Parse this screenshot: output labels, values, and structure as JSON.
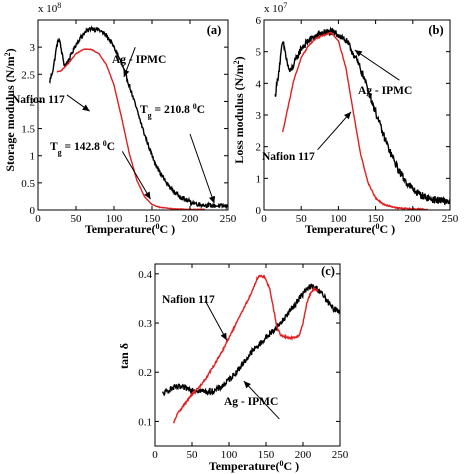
{
  "chart_data": [
    {
      "panel": "(a)",
      "type": "line",
      "xlabel": "Temperature(",
      "xlabel_sup": "0",
      "xlabel_end": "C )",
      "ylabel": "Storage modulus (N/m",
      "ylabel_sup": "2",
      "ylabel_end": ")",
      "multiplier": "x 10",
      "multiplier_exp": "8",
      "xlim": [
        0,
        250
      ],
      "ylim": [
        0,
        3.5
      ],
      "xticks": [
        0,
        50,
        100,
        150,
        200,
        250
      ],
      "yticks": [
        0,
        0.5,
        1,
        1.5,
        2,
        2.5,
        3
      ],
      "xtick_labels": [
        "0",
        "50",
        "100",
        "150",
        "200",
        "250"
      ],
      "ytick_labels": [
        "0",
        "0.5",
        "1",
        "1.5",
        "2",
        "2.5",
        "3"
      ],
      "series": [
        {
          "name": "Ag - IPMC",
          "color": "#000000",
          "noise": 0.04,
          "points": [
            [
              15,
              2.35
            ],
            [
              20,
              2.6
            ],
            [
              25,
              3.05
            ],
            [
              28,
              3.15
            ],
            [
              32,
              2.85
            ],
            [
              35,
              2.65
            ],
            [
              40,
              2.75
            ],
            [
              50,
              3.05
            ],
            [
              60,
              3.25
            ],
            [
              70,
              3.35
            ],
            [
              80,
              3.32
            ],
            [
              90,
              3.22
            ],
            [
              100,
              3.0
            ],
            [
              110,
              2.7
            ],
            [
              120,
              2.3
            ],
            [
              130,
              1.85
            ],
            [
              140,
              1.4
            ],
            [
              150,
              1.0
            ],
            [
              160,
              0.7
            ],
            [
              170,
              0.48
            ],
            [
              180,
              0.32
            ],
            [
              190,
              0.22
            ],
            [
              200,
              0.15
            ],
            [
              210,
              0.11
            ],
            [
              220,
              0.09
            ],
            [
              230,
              0.08
            ],
            [
              240,
              0.075
            ],
            [
              250,
              0.07
            ]
          ]
        },
        {
          "name": "Nafion 117",
          "color": "#e02020",
          "noise": 0.005,
          "points": [
            [
              25,
              2.55
            ],
            [
              30,
              2.56
            ],
            [
              40,
              2.7
            ],
            [
              50,
              2.88
            ],
            [
              60,
              2.96
            ],
            [
              70,
              2.96
            ],
            [
              80,
              2.88
            ],
            [
              90,
              2.68
            ],
            [
              100,
              2.3
            ],
            [
              110,
              1.7
            ],
            [
              120,
              1.05
            ],
            [
              130,
              0.55
            ],
            [
              140,
              0.25
            ],
            [
              150,
              0.1
            ],
            [
              160,
              0.05
            ],
            [
              180,
              0.02
            ],
            [
              200,
              0.01
            ],
            [
              220,
              0.01
            ]
          ]
        }
      ],
      "annotations": [
        {
          "text": "Ag - IPMC",
          "from": [
            128,
            3.0
          ],
          "to": [
            113,
            2.45
          ]
        },
        {
          "text": "Nafion 117",
          "from": [
            38,
            2.12
          ],
          "to": [
            68,
            1.82
          ]
        },
        {
          "text": "T",
          "sub": "g",
          "value": " = 210.8 ",
          "sup": "0",
          "end": "C",
          "from": [
            200,
            1.4
          ],
          "to": [
            232,
            0.12
          ]
        },
        {
          "text": "T",
          "sub": "g",
          "value": " = 142.8 ",
          "sup": "0",
          "end": "C",
          "from": [
            111,
            1.08
          ],
          "to": [
            148,
            0.2
          ]
        }
      ]
    },
    {
      "panel": "(b)",
      "type": "line",
      "xlabel": "Temperature(",
      "xlabel_sup": "0",
      "xlabel_end": "C )",
      "ylabel": "Loss modulus (N/m",
      "ylabel_sup": "2",
      "ylabel_end": ")",
      "multiplier": "x 10",
      "multiplier_exp": "7",
      "xlim": [
        0,
        250
      ],
      "ylim": [
        0,
        6
      ],
      "xticks": [
        0,
        50,
        100,
        150,
        200,
        250
      ],
      "yticks": [
        0,
        1,
        2,
        3,
        4,
        5,
        6
      ],
      "xtick_labels": [
        "0",
        "50",
        "100",
        "150",
        "200",
        "250"
      ],
      "ytick_labels": [
        "0",
        "1",
        "2",
        "3",
        "4",
        "5",
        "6"
      ],
      "series": [
        {
          "name": "Ag - IPMC",
          "color": "#000000",
          "noise": 0.12,
          "points": [
            [
              15,
              3.6
            ],
            [
              20,
              4.4
            ],
            [
              25,
              5.3
            ],
            [
              28,
              5.05
            ],
            [
              32,
              4.55
            ],
            [
              35,
              4.35
            ],
            [
              40,
              4.6
            ],
            [
              50,
              5.1
            ],
            [
              60,
              5.35
            ],
            [
              70,
              5.5
            ],
            [
              80,
              5.6
            ],
            [
              90,
              5.62
            ],
            [
              100,
              5.55
            ],
            [
              110,
              5.35
            ],
            [
              120,
              4.95
            ],
            [
              130,
              4.45
            ],
            [
              140,
              3.8
            ],
            [
              150,
              3.1
            ],
            [
              160,
              2.4
            ],
            [
              170,
              1.8
            ],
            [
              180,
              1.3
            ],
            [
              190,
              0.92
            ],
            [
              200,
              0.65
            ],
            [
              210,
              0.48
            ],
            [
              220,
              0.38
            ],
            [
              230,
              0.32
            ],
            [
              240,
              0.28
            ],
            [
              250,
              0.27
            ]
          ]
        },
        {
          "name": "Nafion 117",
          "color": "#e02020",
          "noise": 0.02,
          "points": [
            [
              25,
              2.45
            ],
            [
              30,
              3.0
            ],
            [
              40,
              4.1
            ],
            [
              50,
              4.8
            ],
            [
              60,
              5.2
            ],
            [
              70,
              5.42
            ],
            [
              80,
              5.52
            ],
            [
              90,
              5.6
            ],
            [
              100,
              5.35
            ],
            [
              110,
              4.5
            ],
            [
              120,
              3.1
            ],
            [
              130,
              1.75
            ],
            [
              140,
              0.85
            ],
            [
              150,
              0.38
            ],
            [
              160,
              0.18
            ],
            [
              180,
              0.06
            ],
            [
              200,
              0.03
            ],
            [
              220,
              0.02
            ]
          ]
        }
      ],
      "annotations": [
        {
          "text": "Ag - IPMC",
          "from": [
            182,
            4.1
          ],
          "to": [
            122,
            5.05
          ]
        },
        {
          "text": "Nafion 117",
          "from": [
            72,
            1.9
          ],
          "to": [
            117,
            3.1
          ]
        }
      ]
    },
    {
      "panel": "(c)",
      "type": "line",
      "xlabel": "Temperature(",
      "xlabel_sup": "0",
      "xlabel_end": "C )",
      "ylabel": "tan δ",
      "xlim": [
        0,
        250
      ],
      "ylim": [
        0.05,
        0.42
      ],
      "xticks": [
        0,
        50,
        100,
        150,
        200,
        250
      ],
      "yticks": [
        0.1,
        0.2,
        0.3,
        0.4
      ],
      "xtick_labels": [
        "0",
        "50",
        "100",
        "150",
        "200",
        "250"
      ],
      "ytick_labels": [
        "0.1",
        "0.2",
        "0.3",
        "0.4"
      ],
      "series": [
        {
          "name": "Ag - IPMC",
          "color": "#000000",
          "noise": 0.006,
          "points": [
            [
              10,
              0.155
            ],
            [
              15,
              0.16
            ],
            [
              20,
              0.165
            ],
            [
              25,
              0.168
            ],
            [
              30,
              0.17
            ],
            [
              40,
              0.168
            ],
            [
              50,
              0.165
            ],
            [
              60,
              0.163
            ],
            [
              70,
              0.16
            ],
            [
              80,
              0.162
            ],
            [
              90,
              0.17
            ],
            [
              100,
              0.185
            ],
            [
              110,
              0.2
            ],
            [
              120,
              0.22
            ],
            [
              130,
              0.24
            ],
            [
              140,
              0.255
            ],
            [
              150,
              0.27
            ],
            [
              160,
              0.285
            ],
            [
              170,
              0.3
            ],
            [
              180,
              0.32
            ],
            [
              190,
              0.34
            ],
            [
              200,
              0.36
            ],
            [
              210,
              0.375
            ],
            [
              220,
              0.37
            ],
            [
              230,
              0.35
            ],
            [
              240,
              0.33
            ],
            [
              250,
              0.325
            ]
          ]
        },
        {
          "name": "Nafion 117",
          "color": "#e02020",
          "noise": 0.002,
          "points": [
            [
              25,
              0.095
            ],
            [
              30,
              0.115
            ],
            [
              40,
              0.135
            ],
            [
              50,
              0.155
            ],
            [
              60,
              0.17
            ],
            [
              70,
              0.19
            ],
            [
              80,
              0.215
            ],
            [
              90,
              0.24
            ],
            [
              100,
              0.27
            ],
            [
              110,
              0.3
            ],
            [
              120,
              0.33
            ],
            [
              130,
              0.36
            ],
            [
              138,
              0.39
            ],
            [
              142,
              0.397
            ],
            [
              148,
              0.393
            ],
            [
              155,
              0.37
            ],
            [
              160,
              0.33
            ],
            [
              165,
              0.29
            ],
            [
              170,
              0.275
            ],
            [
              180,
              0.27
            ],
            [
              190,
              0.27
            ],
            [
              195,
              0.275
            ],
            [
              200,
              0.3
            ],
            [
              205,
              0.34
            ],
            [
              210,
              0.36
            ],
            [
              215,
              0.37
            ],
            [
              220,
              0.365
            ]
          ]
        }
      ],
      "annotations": [
        {
          "text": "Nafion 117",
          "from": [
            68,
            0.345
          ],
          "to": [
            97,
            0.265
          ]
        },
        {
          "text": "Ag - IPMC",
          "from": [
            168,
            0.105
          ],
          "to": [
            120,
            0.182
          ]
        }
      ]
    }
  ]
}
